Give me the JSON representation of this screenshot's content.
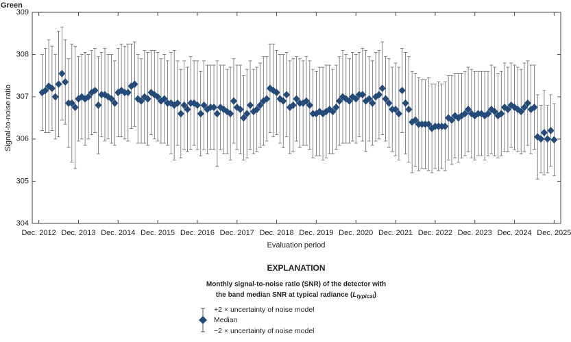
{
  "chart_data": {
    "type": "errorbar",
    "title": "Green",
    "y_label": "Signal-to-noise ratio",
    "x_label": "Evaluation period",
    "ylim": [
      304,
      309
    ],
    "yticks": [
      304,
      305,
      306,
      307,
      308,
      309
    ],
    "xlim": [
      "2012-10",
      "2026-02"
    ],
    "xticks": [
      {
        "value": "2012-12",
        "label": "Dec. 2012"
      },
      {
        "value": "2013-12",
        "label": "Dec. 2013"
      },
      {
        "value": "2014-12",
        "label": "Dec. 2014"
      },
      {
        "value": "2015-12",
        "label": "Dec. 2015"
      },
      {
        "value": "2016-12",
        "label": "Dec. 2016"
      },
      {
        "value": "2017-12",
        "label": "Dec. 2017"
      },
      {
        "value": "2018-12",
        "label": "Dec. 2018"
      },
      {
        "value": "2019-12",
        "label": "Dec. 2019"
      },
      {
        "value": "2020-12",
        "label": "Dec. 2020"
      },
      {
        "value": "2021-12",
        "label": "Dec. 2021"
      },
      {
        "value": "2022-12",
        "label": "Dec. 2022"
      },
      {
        "value": "2023-12",
        "label": "Dec. 2023"
      },
      {
        "value": "2024-12",
        "label": "Dec. 2024"
      },
      {
        "value": "2025-12",
        "label": "Dec. 2025"
      }
    ],
    "x": [
      "2013-01",
      "2013-02",
      "2013-03",
      "2013-04",
      "2013-05",
      "2013-06",
      "2013-07",
      "2013-08",
      "2013-09",
      "2013-10",
      "2013-11",
      "2013-12",
      "2014-01",
      "2014-02",
      "2014-03",
      "2014-04",
      "2014-05",
      "2014-06",
      "2014-07",
      "2014-08",
      "2014-09",
      "2014-10",
      "2014-11",
      "2014-12",
      "2015-01",
      "2015-02",
      "2015-03",
      "2015-04",
      "2015-05",
      "2015-06",
      "2015-07",
      "2015-08",
      "2015-09",
      "2015-10",
      "2015-11",
      "2015-12",
      "2016-01",
      "2016-02",
      "2016-03",
      "2016-04",
      "2016-05",
      "2016-06",
      "2016-07",
      "2016-08",
      "2016-09",
      "2016-10",
      "2016-11",
      "2016-12",
      "2017-01",
      "2017-02",
      "2017-03",
      "2017-04",
      "2017-05",
      "2017-06",
      "2017-07",
      "2017-08",
      "2017-09",
      "2017-10",
      "2017-11",
      "2017-12",
      "2018-01",
      "2018-02",
      "2018-03",
      "2018-04",
      "2018-05",
      "2018-06",
      "2018-07",
      "2018-08",
      "2018-09",
      "2018-10",
      "2018-11",
      "2018-12",
      "2019-01",
      "2019-02",
      "2019-03",
      "2019-04",
      "2019-05",
      "2019-06",
      "2019-07",
      "2019-08",
      "2019-09",
      "2019-10",
      "2019-11",
      "2019-12",
      "2020-01",
      "2020-02",
      "2020-03",
      "2020-04",
      "2020-05",
      "2020-06",
      "2020-07",
      "2020-08",
      "2020-09",
      "2020-10",
      "2020-11",
      "2020-12",
      "2021-01",
      "2021-02",
      "2021-03",
      "2021-04",
      "2021-05",
      "2021-06",
      "2021-07",
      "2021-08",
      "2021-09",
      "2021-10",
      "2021-11",
      "2021-12",
      "2022-01",
      "2022-02",
      "2022-03",
      "2022-04",
      "2022-05",
      "2022-06",
      "2022-07",
      "2022-08",
      "2022-09",
      "2022-10",
      "2022-11",
      "2022-12",
      "2023-01",
      "2023-02",
      "2023-03",
      "2023-04",
      "2023-05",
      "2023-06",
      "2023-07",
      "2023-08",
      "2023-09",
      "2023-10",
      "2023-11",
      "2023-12",
      "2024-01",
      "2024-02",
      "2024-03",
      "2024-04",
      "2024-05",
      "2024-06",
      "2024-07",
      "2024-08",
      "2024-09",
      "2024-10",
      "2024-11",
      "2024-12",
      "2025-01",
      "2025-02",
      "2025-03",
      "2025-04",
      "2025-05",
      "2025-06",
      "2025-07",
      "2025-08",
      "2025-09",
      "2025-10",
      "2025-11",
      "2025-12"
    ],
    "series": [
      {
        "name": "Median",
        "color": "#234a78",
        "values": [
          307.1,
          307.15,
          307.25,
          307.2,
          307.0,
          307.3,
          307.55,
          307.35,
          306.85,
          306.85,
          306.75,
          306.95,
          307.0,
          306.95,
          307.0,
          307.1,
          307.15,
          306.8,
          307.05,
          307.05,
          307.0,
          306.95,
          306.85,
          307.1,
          307.15,
          307.1,
          307.1,
          307.25,
          307.3,
          306.95,
          306.9,
          307.0,
          306.95,
          307.1,
          307.05,
          307.0,
          306.9,
          306.95,
          306.85,
          306.85,
          306.8,
          306.85,
          306.6,
          306.8,
          306.7,
          306.85,
          306.85,
          306.8,
          306.6,
          306.8,
          306.7,
          306.75,
          306.75,
          306.6,
          306.75,
          306.7,
          306.65,
          306.6,
          306.9,
          306.75,
          306.7,
          306.5,
          306.6,
          306.8,
          306.65,
          306.7,
          306.8,
          306.9,
          306.95,
          307.2,
          307.15,
          307.1,
          306.95,
          306.9,
          307.05,
          306.75,
          306.8,
          306.95,
          306.85,
          306.85,
          306.9,
          306.8,
          306.6,
          306.6,
          306.65,
          306.6,
          306.65,
          306.7,
          306.65,
          306.75,
          306.9,
          307.0,
          306.95,
          306.9,
          307.0,
          306.95,
          307.05,
          307.05,
          306.9,
          306.95,
          306.85,
          307.0,
          307.05,
          307.2,
          306.95,
          306.85,
          306.7,
          306.7,
          306.6,
          307.15,
          306.85,
          306.7,
          306.4,
          306.45,
          306.35,
          306.35,
          306.35,
          306.35,
          306.25,
          306.3,
          306.3,
          306.3,
          306.3,
          306.5,
          306.45,
          306.55,
          306.5,
          306.55,
          306.6,
          306.7,
          306.6,
          306.55,
          306.6,
          306.6,
          306.55,
          306.6,
          306.7,
          306.65,
          306.55,
          306.6,
          306.75,
          306.7,
          306.8,
          306.75,
          306.7,
          306.65,
          306.75,
          306.85,
          306.7,
          306.75,
          306.05,
          306.0,
          306.15,
          306.0,
          306.2,
          305.98
        ],
        "errors": [
          0.9,
          1.0,
          1.1,
          1.0,
          1.0,
          1.25,
          1.1,
          1.0,
          1.05,
          1.4,
          1.45,
          1.0,
          1.0,
          1.1,
          1.0,
          1.0,
          1.0,
          1.15,
          1.0,
          1.1,
          1.0,
          1.05,
          1.0,
          1.05,
          1.1,
          1.1,
          1.15,
          1.0,
          1.0,
          1.05,
          1.0,
          1.1,
          1.1,
          1.0,
          1.05,
          1.05,
          1.0,
          1.05,
          1.0,
          1.2,
          1.3,
          1.0,
          1.05,
          1.05,
          1.0,
          1.1,
          1.0,
          1.05,
          1.0,
          1.05,
          1.05,
          1.0,
          1.0,
          1.25,
          1.0,
          1.05,
          1.0,
          1.1,
          1.0,
          1.0,
          1.05,
          1.0,
          1.05,
          1.05,
          1.0,
          1.0,
          1.0,
          1.05,
          1.0,
          1.05,
          1.1,
          1.0,
          1.05,
          1.1,
          1.0,
          1.1,
          1.1,
          1.0,
          1.05,
          1.0,
          1.05,
          1.05,
          1.05,
          1.0,
          1.05,
          1.1,
          1.1,
          1.05,
          1.0,
          1.0,
          1.05,
          1.1,
          1.05,
          1.0,
          1.05,
          1.05,
          1.0,
          1.1,
          1.2,
          1.0,
          1.0,
          1.05,
          1.05,
          1.1,
          1.0,
          1.05,
          1.0,
          1.1,
          1.1,
          1.0,
          1.2,
          1.25,
          1.2,
          1.1,
          1.1,
          1.05,
          1.05,
          1.1,
          1.05,
          1.0,
          1.05,
          1.0,
          1.05,
          1.0,
          1.05,
          1.0,
          1.05,
          1.0,
          1.0,
          1.0,
          1.05,
          1.05,
          1.0,
          1.0,
          1.05,
          1.0,
          1.05,
          1.05,
          1.0,
          1.0,
          1.05,
          1.0,
          1.0,
          1.0,
          1.0,
          1.0,
          1.05,
          1.0,
          1.05,
          1.0,
          1.0,
          0.8,
          1.0,
          0.8,
          0.85,
          0.85
        ]
      }
    ],
    "explanation": {
      "title": "EXPLANATION",
      "heading_line1": "Monthly signal-to-noise ratio (SNR) of the detector with",
      "heading_line2": [
        "the band median SNR at typical radiance (",
        "L",
        "typical",
        ")"
      ],
      "upper": "+2 × uncertainty of noise model",
      "lower": "−2 × uncertainty of noise model"
    }
  }
}
